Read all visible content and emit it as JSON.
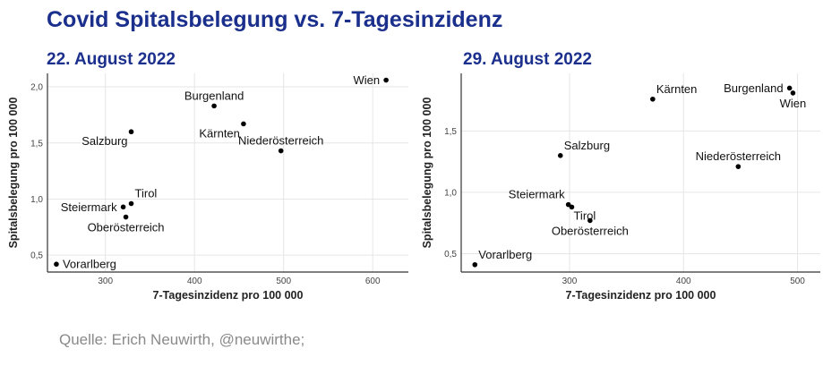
{
  "title": "Covid Spitalsbelegung vs. 7-Tagesinzidenz",
  "source": "Quelle: Erich Neuwirth, @neuwirthe;",
  "chart_data": [
    {
      "type": "scatter",
      "title": "22. August 2022",
      "xlabel": "7-Tagesinzidenz pro 100 000",
      "ylabel": "Spitalsbelegung pro 100 000",
      "xlim": [
        235,
        640
      ],
      "ylim": [
        0.35,
        2.12
      ],
      "xticks": [
        300,
        400,
        500,
        600
      ],
      "yticks": [
        0.5,
        1.0,
        1.5,
        2.0
      ],
      "ytick_labels": [
        "0,5",
        "1,0",
        "1,5",
        "2,0"
      ],
      "grid": true,
      "points": [
        {
          "name": "Wien",
          "x": 615,
          "y": 2.06,
          "label_pos": "left"
        },
        {
          "name": "Burgenland",
          "x": 422,
          "y": 1.83,
          "label_pos": "top"
        },
        {
          "name": "Kärnten",
          "x": 455,
          "y": 1.67,
          "label_pos": "bottom-left"
        },
        {
          "name": "Salzburg",
          "x": 329,
          "y": 1.6,
          "label_pos": "bottom-left"
        },
        {
          "name": "Niederösterreich",
          "x": 497,
          "y": 1.43,
          "label_pos": "top"
        },
        {
          "name": "Tirol",
          "x": 329,
          "y": 0.96,
          "label_pos": "top-right"
        },
        {
          "name": "Steiermark",
          "x": 320,
          "y": 0.93,
          "label_pos": "left"
        },
        {
          "name": "Oberösterreich",
          "x": 323,
          "y": 0.84,
          "label_pos": "bottom"
        },
        {
          "name": "Vorarlberg",
          "x": 245,
          "y": 0.42,
          "label_pos": "right"
        }
      ]
    },
    {
      "type": "scatter",
      "title": "29. August 2022",
      "xlabel": "7-Tagesinzidenz pro 100 000",
      "ylabel": "Spitalsbelegung pro 100 000",
      "xlim": [
        205,
        520
      ],
      "ylim": [
        0.35,
        1.97
      ],
      "xticks": [
        300,
        400,
        500
      ],
      "yticks": [
        0.5,
        1.0,
        1.5
      ],
      "ytick_labels": [
        "0,5",
        "1,0",
        "1,5"
      ],
      "grid": true,
      "points": [
        {
          "name": "Kärnten",
          "x": 373,
          "y": 1.76,
          "label_pos": "top-right"
        },
        {
          "name": "Burgenland",
          "x": 493,
          "y": 1.85,
          "label_pos": "left"
        },
        {
          "name": "Wien",
          "x": 496,
          "y": 1.81,
          "label_pos": "bottom"
        },
        {
          "name": "Salzburg",
          "x": 292,
          "y": 1.3,
          "label_pos": "top-right"
        },
        {
          "name": "Niederösterreich",
          "x": 448,
          "y": 1.21,
          "label_pos": "top"
        },
        {
          "name": "Steiermark",
          "x": 299,
          "y": 0.9,
          "label_pos": "top-left"
        },
        {
          "name": "Tirol",
          "x": 302,
          "y": 0.88,
          "label_pos": "bottom-right"
        },
        {
          "name": "Oberösterreich",
          "x": 318,
          "y": 0.77,
          "label_pos": "bottom"
        },
        {
          "name": "Vorarlberg",
          "x": 217,
          "y": 0.41,
          "label_pos": "top-right"
        }
      ]
    }
  ]
}
